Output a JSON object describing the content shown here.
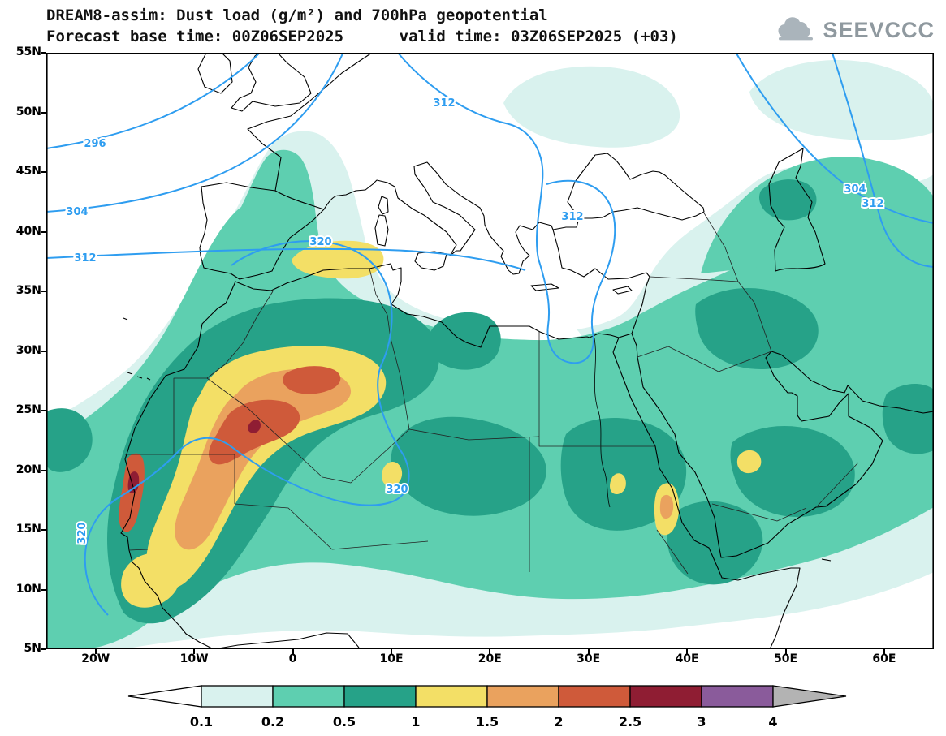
{
  "header": {
    "title_line1": "DREAM8-assim: Dust load (g/m²) and 700hPa geopotential",
    "title_line2": "Forecast base time: 00Z06SEP2025      valid time: 03Z06SEP2025 (+03)"
  },
  "logo": {
    "text": "SEEVCCC"
  },
  "map": {
    "lat_labels": [
      "55N",
      "50N",
      "45N",
      "40N",
      "35N",
      "30N",
      "25N",
      "20N",
      "15N",
      "10N",
      "5N"
    ],
    "lon_labels": [
      "20W",
      "10W",
      "0",
      "10E",
      "20E",
      "30E",
      "40E",
      "50E",
      "60E"
    ],
    "contour_labels": [
      {
        "text": "296"
      },
      {
        "text": "304"
      },
      {
        "text": "312"
      },
      {
        "text": "320"
      },
      {
        "text": "312"
      },
      {
        "text": "312"
      },
      {
        "text": "304"
      },
      {
        "text": "312"
      },
      {
        "text": "320"
      },
      {
        "text": "320"
      }
    ]
  },
  "colorbar": {
    "labels": [
      "0.1",
      "0.2",
      "0.5",
      "1",
      "1.5",
      "2",
      "2.5",
      "3",
      "4"
    ],
    "colors": [
      "#ffffff",
      "#d9f2ee",
      "#5ecfb0",
      "#26a288",
      "#f3df66",
      "#eaa25e",
      "#cf5a3a",
      "#8f1d33",
      "#8a5b9b",
      "#b3b3b3"
    ]
  },
  "chart_data": {
    "type": "heatmap",
    "subtype": "filled-contour geographic map with line contours",
    "title": "DREAM8-assim: Dust load (g/m²) and 700hPa geopotential",
    "subtitle": "Forecast base time: 00Z06SEP2025  valid time: 03Z06SEP2025 (+03)",
    "x_axis": {
      "label": "longitude",
      "range": [
        "25W",
        "65E"
      ],
      "tick_labels": [
        "20W",
        "10W",
        "0",
        "10E",
        "20E",
        "30E",
        "40E",
        "50E",
        "60E"
      ]
    },
    "y_axis": {
      "label": "latitude",
      "range": [
        "5N",
        "55N"
      ],
      "tick_labels": [
        "5N",
        "10N",
        "15N",
        "20N",
        "25N",
        "30N",
        "35N",
        "40N",
        "45N",
        "50N",
        "55N"
      ]
    },
    "fill_variable": "dust load (g/m²)",
    "fill_levels": [
      0.1,
      0.2,
      0.5,
      1,
      1.5,
      2,
      2.5,
      3,
      4
    ],
    "fill_palette": [
      "#ffffff",
      "#d9f2ee",
      "#5ecfb0",
      "#26a288",
      "#f3df66",
      "#eaa25e",
      "#cf5a3a",
      "#8f1d33",
      "#8a5b9b",
      "#b3b3b3"
    ],
    "line_variable": "700hPa geopotential (dam)",
    "contour_color": "#2e9df0",
    "contour_values_visible": [
      296,
      304,
      312,
      320
    ],
    "grid": "dotted lat/lon every 5 degrees",
    "legend_position": "horizontal colorbar below map",
    "features": [
      "Dust maximum above 2.5 g/m² over Western Sahara / northern Mauritania coastal strip",
      "Core of 2-2.5 g/m² over southwest Algeria and the Morocco-Algeria border region",
      "Broad 1-1.5 g/m² (yellow) area over Morocco and western Algeria, with a band near 34N between 0E and 8E",
      "Yellow plume extending southwest along the Atlantic coast to Senegal (~14N)",
      "Moderate 0.5-1 g/m² over Sahel, central Sahara, Sudan, the Arabian Peninsula and the Horn of Africa",
      "Small 1-1.5 g/m² spots over southern Libya, Ethiopia/Eritrea and southern Arabia",
      "0.1-0.2 g/m² fringe reaching Spain, southern France, Turkey, the Caucasus and Ukraine",
      "296 and 304 dam contours over the northeast Atlantic, 312 dam trough with closed low over the Aegean/Turkey",
      "320 dam contour looping over northwest Africa and along the west African coast"
    ]
  }
}
